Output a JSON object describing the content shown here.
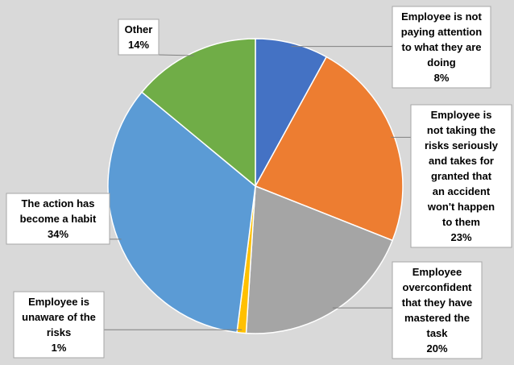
{
  "chart_data": {
    "type": "pie",
    "title": "",
    "slices": [
      {
        "label_lines": [
          "Employee is not",
          "paying attention",
          "to what they are",
          "doing"
        ],
        "value_label": "8%",
        "value": 8,
        "color": "#4472c4"
      },
      {
        "label_lines": [
          "Employee is",
          "not taking the",
          "risks seriously",
          "and takes for",
          "granted that",
          "an accident",
          "won't happen",
          "to them"
        ],
        "value_label": "23%",
        "value": 23,
        "color": "#ed7d31"
      },
      {
        "label_lines": [
          "Employee",
          "overconfident",
          "that they have",
          "mastered the",
          "task"
        ],
        "value_label": "20%",
        "value": 20,
        "color": "#a5a5a5"
      },
      {
        "label_lines": [
          "Employee is",
          "unaware of the",
          "risks"
        ],
        "value_label": "1%",
        "value": 1,
        "color": "#ffc000"
      },
      {
        "label_lines": [
          "The action has",
          "become a habit"
        ],
        "value_label": "34%",
        "value": 34,
        "color": "#5b9bd5"
      },
      {
        "label_lines": [
          "Other"
        ],
        "value_label": "14%",
        "value": 14,
        "color": "#70ad47"
      }
    ]
  }
}
